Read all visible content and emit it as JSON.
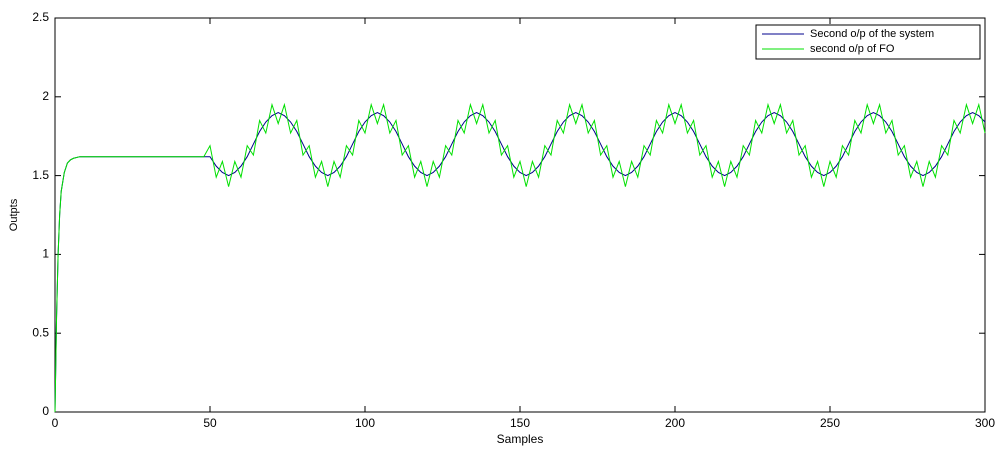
{
  "chart_data": {
    "type": "line",
    "xlabel": "Samples",
    "ylabel": "Outpts",
    "xlim": [
      0,
      300
    ],
    "xticks": [
      0,
      50,
      100,
      150,
      200,
      250,
      300
    ],
    "ylim": [
      0,
      2.5
    ],
    "yticks": [
      0,
      0.5,
      1,
      1.5,
      2,
      2.5
    ],
    "legend": "upper right",
    "x": [
      0,
      0.5,
      1,
      1.5,
      2,
      3,
      4,
      5,
      6,
      8,
      10,
      12,
      14,
      16,
      18,
      20,
      22,
      24,
      26,
      28,
      30,
      32,
      34,
      36,
      38,
      40,
      42,
      44,
      46,
      48,
      50,
      52,
      54,
      56,
      58,
      60,
      62,
      64,
      66,
      68,
      70,
      72,
      74,
      76,
      78,
      80,
      82,
      84,
      86,
      88,
      90,
      92,
      94,
      96,
      98,
      100,
      102,
      104,
      106,
      108,
      110,
      112,
      114,
      116,
      118,
      120,
      122,
      124,
      126,
      128,
      130,
      132,
      134,
      136,
      138,
      140,
      142,
      144,
      146,
      148,
      150,
      152,
      154,
      156,
      158,
      160,
      162,
      164,
      166,
      168,
      170,
      172,
      174,
      176,
      178,
      180,
      182,
      184,
      186,
      188,
      190,
      192,
      194,
      196,
      198,
      200,
      202,
      204,
      206,
      208,
      210,
      212,
      214,
      216,
      218,
      220,
      222,
      224,
      226,
      228,
      230,
      232,
      234,
      236,
      238,
      240,
      242,
      244,
      246,
      248,
      250,
      252,
      254,
      256,
      258,
      260,
      262,
      264,
      266,
      268,
      270,
      272,
      274,
      276,
      278,
      280,
      282,
      284,
      286,
      288,
      290,
      292,
      294,
      296,
      298,
      300
    ],
    "series": [
      {
        "name": "Second o/p of the system",
        "color": "#00008c",
        "values": [
          0,
          0.6,
          1,
          1.25,
          1.4,
          1.52,
          1.58,
          1.6,
          1.61,
          1.62,
          1.62,
          1.62,
          1.62,
          1.62,
          1.62,
          1.62,
          1.62,
          1.62,
          1.62,
          1.62,
          1.62,
          1.62,
          1.62,
          1.62,
          1.62,
          1.62,
          1.62,
          1.62,
          1.62,
          1.62,
          1.62,
          1.56,
          1.52,
          1.5,
          1.52,
          1.56,
          1.62,
          1.7,
          1.78,
          1.84,
          1.88,
          1.9,
          1.88,
          1.84,
          1.78,
          1.7,
          1.62,
          1.56,
          1.52,
          1.5,
          1.52,
          1.56,
          1.62,
          1.7,
          1.78,
          1.84,
          1.88,
          1.9,
          1.88,
          1.84,
          1.78,
          1.7,
          1.62,
          1.56,
          1.52,
          1.5,
          1.52,
          1.56,
          1.62,
          1.7,
          1.78,
          1.84,
          1.88,
          1.9,
          1.88,
          1.84,
          1.78,
          1.7,
          1.62,
          1.56,
          1.52,
          1.5,
          1.52,
          1.56,
          1.62,
          1.7,
          1.78,
          1.84,
          1.88,
          1.9,
          1.88,
          1.84,
          1.78,
          1.7,
          1.62,
          1.56,
          1.52,
          1.5,
          1.52,
          1.56,
          1.62,
          1.7,
          1.78,
          1.84,
          1.88,
          1.9,
          1.88,
          1.84,
          1.78,
          1.7,
          1.62,
          1.56,
          1.52,
          1.5,
          1.52,
          1.56,
          1.62,
          1.7,
          1.78,
          1.84,
          1.88,
          1.9,
          1.88,
          1.84,
          1.78,
          1.7,
          1.62,
          1.56,
          1.52,
          1.5,
          1.52,
          1.56,
          1.62,
          1.7,
          1.78,
          1.84,
          1.88,
          1.9,
          1.88,
          1.84,
          1.78,
          1.7,
          1.62,
          1.56,
          1.52,
          1.5,
          1.52,
          1.56,
          1.62,
          1.7,
          1.78,
          1.84,
          1.88,
          1.9,
          1.88,
          1.84
        ]
      },
      {
        "name": "second o/p of FO",
        "color": "#00e000",
        "values": [
          0,
          0.6,
          1,
          1.25,
          1.4,
          1.52,
          1.58,
          1.6,
          1.61,
          1.62,
          1.62,
          1.62,
          1.62,
          1.62,
          1.62,
          1.62,
          1.62,
          1.62,
          1.62,
          1.62,
          1.62,
          1.62,
          1.62,
          1.62,
          1.62,
          1.62,
          1.62,
          1.62,
          1.62,
          1.62,
          1.69,
          1.49,
          1.59,
          1.43,
          1.59,
          1.49,
          1.69,
          1.63,
          1.85,
          1.77,
          1.95,
          1.83,
          1.95,
          1.77,
          1.85,
          1.63,
          1.69,
          1.49,
          1.59,
          1.43,
          1.59,
          1.49,
          1.69,
          1.63,
          1.85,
          1.77,
          1.95,
          1.83,
          1.95,
          1.77,
          1.85,
          1.63,
          1.69,
          1.49,
          1.59,
          1.43,
          1.59,
          1.49,
          1.69,
          1.63,
          1.85,
          1.77,
          1.95,
          1.83,
          1.95,
          1.77,
          1.85,
          1.63,
          1.69,
          1.49,
          1.59,
          1.43,
          1.59,
          1.49,
          1.69,
          1.63,
          1.85,
          1.77,
          1.95,
          1.83,
          1.95,
          1.77,
          1.85,
          1.63,
          1.69,
          1.49,
          1.59,
          1.43,
          1.59,
          1.49,
          1.69,
          1.63,
          1.85,
          1.77,
          1.95,
          1.83,
          1.95,
          1.77,
          1.85,
          1.63,
          1.69,
          1.49,
          1.59,
          1.43,
          1.59,
          1.49,
          1.69,
          1.63,
          1.85,
          1.77,
          1.95,
          1.83,
          1.95,
          1.77,
          1.85,
          1.63,
          1.69,
          1.49,
          1.59,
          1.43,
          1.59,
          1.49,
          1.69,
          1.63,
          1.85,
          1.77,
          1.95,
          1.83,
          1.95,
          1.77,
          1.85,
          1.63,
          1.69,
          1.49,
          1.59,
          1.43,
          1.59,
          1.49,
          1.69,
          1.63,
          1.85,
          1.77,
          1.95,
          1.83,
          1.95,
          1.77
        ]
      }
    ]
  }
}
